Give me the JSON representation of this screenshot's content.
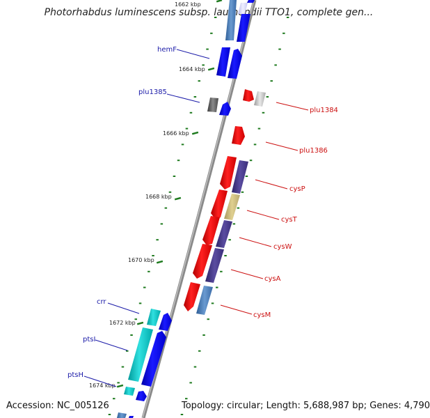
{
  "header": {
    "title": "Photorhabdus luminescens subsp. laumondii TTO1, complete gen..."
  },
  "footer": {
    "accession": "Accession: NC_005126",
    "summary": "Topology: circular; Length: 5,688,987 bp; Genes: 4,790"
  },
  "colors": {
    "backbone": "#8a8a8a",
    "forward_gene": "#0000ee",
    "reverse_gene": "#ee0000",
    "label_forward": "#1a1aa8",
    "label_reverse": "#cc1010",
    "tick": "#1e7a1e",
    "cyan_gene": "#18c8c8",
    "steelblue_gene": "#4a7eb8",
    "slate_gene": "#4a3c8c",
    "khaki_gene": "#c8b878",
    "gray_gene": "#666666"
  },
  "ticks": [
    {
      "label": "1662 kbp"
    },
    {
      "label": "1664 kbp"
    },
    {
      "label": "1666 kbp"
    },
    {
      "label": "1668 kbp"
    },
    {
      "label": "1670 kbp"
    },
    {
      "label": "1672 kbp"
    },
    {
      "label": "1674 kbp"
    }
  ],
  "labels_forward": [
    "hemF",
    "plu1385",
    "crr",
    "ptsI",
    "ptsH"
  ],
  "labels_reverse": [
    "plu1384",
    "plu1386",
    "cysP",
    "cysT",
    "cysW",
    "cysA",
    "cysM"
  ]
}
